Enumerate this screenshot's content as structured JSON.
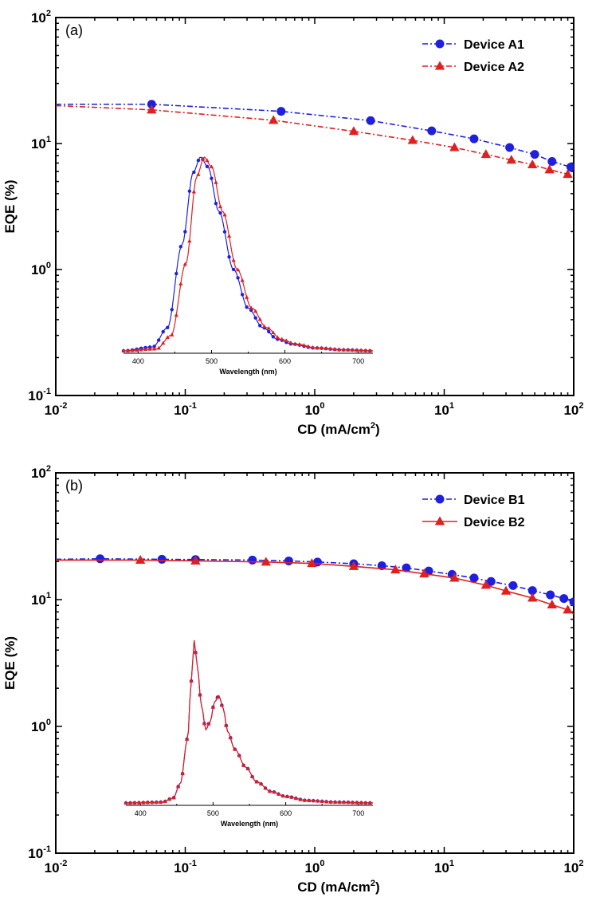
{
  "chart_data": [
    {
      "type": "line",
      "panel_label": "(a)",
      "xlabel": "CD (mA/cm2)",
      "ylabel": "EQE (%)",
      "x_scale": "log",
      "y_scale": "log",
      "xlim": [
        0.01,
        100
      ],
      "ylim": [
        0.1,
        100
      ],
      "x_tick_labels": [
        "10-2",
        "10-1",
        "100",
        "101",
        "102"
      ],
      "y_tick_labels": [
        "10-1",
        "100",
        "101",
        "102"
      ],
      "legend_position": "top-right",
      "series": [
        {
          "name": "Device A1",
          "color": "#1f1fe0",
          "marker": "circle",
          "line_style": "dash-dot",
          "x": [
            0.01,
            0.055,
            0.55,
            2.7,
            8,
            17,
            32,
            50,
            68,
            95
          ],
          "y": [
            20.5,
            20.5,
            18.0,
            15.2,
            12.6,
            10.9,
            9.3,
            8.2,
            7.2,
            6.5
          ],
          "marked_points": [
            0.055,
            0.55,
            2.7,
            8,
            17,
            32,
            50,
            68,
            95
          ]
        },
        {
          "name": "Device A2",
          "color": "#e01f1f",
          "marker": "triangle",
          "line_style": "dash-dot",
          "x": [
            0.01,
            0.055,
            0.48,
            2.0,
            5.7,
            12,
            21,
            33,
            48,
            65,
            90
          ],
          "y": [
            20.0,
            18.5,
            15.3,
            12.5,
            10.6,
            9.3,
            8.2,
            7.4,
            6.8,
            6.2,
            5.7
          ],
          "marked_points": [
            0.055,
            0.48,
            2.0,
            5.7,
            12,
            21,
            33,
            48,
            65,
            90
          ]
        }
      ],
      "inset": {
        "xlabel": "Wavelength (nm)",
        "xlim": [
          380,
          720
        ],
        "x_tick_labels": [
          "400",
          "500",
          "600",
          "700"
        ],
        "series": [
          {
            "name": "Device A1",
            "color": "#1f1fe0",
            "marker": "circle",
            "x": [
              380,
              420,
              440,
              460,
              475,
              485,
              495,
              510,
              530,
              550,
              570,
              590,
              610,
              640,
              680,
              720
            ],
            "y": [
              0.0,
              0.02,
              0.12,
              0.55,
              0.92,
              1.0,
              0.95,
              0.72,
              0.42,
              0.22,
              0.12,
              0.06,
              0.035,
              0.015,
              0.005,
              0.0
            ]
          },
          {
            "name": "Device A2",
            "color": "#e01f1f",
            "marker": "triangle",
            "x": [
              380,
              425,
              445,
              465,
              480,
              490,
              500,
              515,
              535,
              555,
              575,
              595,
              615,
              645,
              685,
              720
            ],
            "y": [
              0.0,
              0.01,
              0.08,
              0.45,
              0.9,
              1.0,
              0.95,
              0.72,
              0.42,
              0.22,
              0.12,
              0.06,
              0.035,
              0.015,
              0.005,
              0.0
            ]
          }
        ]
      }
    },
    {
      "type": "line",
      "panel_label": "(b)",
      "xlabel": "CD (mA/cm2)",
      "ylabel": "EQE (%)",
      "x_scale": "log",
      "y_scale": "log",
      "xlim": [
        0.01,
        100
      ],
      "ylim": [
        0.1,
        100
      ],
      "x_tick_labels": [
        "10-2",
        "10-1",
        "100",
        "101",
        "102"
      ],
      "y_tick_labels": [
        "10-1",
        "100",
        "101",
        "102"
      ],
      "legend_position": "top-right",
      "series": [
        {
          "name": "Device B1",
          "color": "#1f1fe0",
          "marker": "circle",
          "line_style": "dash-dot",
          "x": [
            0.01,
            0.022,
            0.066,
            0.12,
            0.33,
            0.63,
            1.05,
            2.0,
            3.3,
            5.1,
            7.6,
            11.5,
            17,
            23,
            34,
            48,
            66,
            84,
            100
          ],
          "y": [
            20.8,
            21.0,
            20.8,
            20.7,
            20.5,
            20.2,
            19.8,
            19.2,
            18.5,
            17.8,
            16.8,
            15.8,
            14.8,
            13.9,
            12.9,
            11.8,
            10.9,
            10.2,
            9.6
          ],
          "marked_points": [
            0.022,
            0.066,
            0.12,
            0.33,
            0.63,
            1.05,
            2.0,
            3.3,
            5.1,
            7.6,
            11.5,
            17,
            23,
            34,
            48,
            66,
            84,
            100
          ]
        },
        {
          "name": "Device B2",
          "color": "#e01f1f",
          "marker": "triangle",
          "line_style": "solid",
          "x": [
            0.01,
            0.045,
            0.12,
            0.42,
            0.95,
            2.0,
            4.2,
            7.0,
            12,
            21,
            30,
            48,
            68,
            90,
            100
          ],
          "y": [
            20.5,
            20.5,
            20.2,
            19.8,
            19.3,
            18.3,
            17.2,
            16.0,
            14.8,
            13.0,
            11.7,
            10.3,
            9.1,
            8.3,
            7.7
          ],
          "marked_points": [
            0.045,
            0.12,
            0.42,
            0.95,
            2.0,
            4.2,
            7.0,
            12,
            21,
            30,
            48,
            68,
            90
          ]
        }
      ],
      "inset": {
        "xlabel": "Wavelength (nm)",
        "xlim": [
          380,
          720
        ],
        "x_tick_labels": [
          "400",
          "500",
          "600",
          "700"
        ],
        "series": [
          {
            "name": "Device B1",
            "color": "#1f1fe0",
            "marker": "circle",
            "x": [
              380,
              430,
              445,
              455,
              465,
              470,
              474,
              478,
              484,
              490,
              496,
              502,
              508,
              514,
              520,
              530,
              545,
              560,
              580,
              600,
              630,
              670,
              720
            ],
            "y": [
              0.0,
              0.005,
              0.03,
              0.12,
              0.4,
              0.75,
              1.0,
              0.85,
              0.6,
              0.45,
              0.5,
              0.62,
              0.66,
              0.58,
              0.44,
              0.33,
              0.22,
              0.13,
              0.07,
              0.04,
              0.015,
              0.005,
              0.0
            ]
          },
          {
            "name": "Device B2",
            "color": "#e01f1f",
            "marker": "triangle",
            "x": [
              380,
              430,
              445,
              455,
              465,
              470,
              474,
              478,
              484,
              490,
              496,
              502,
              508,
              514,
              520,
              530,
              545,
              560,
              580,
              600,
              630,
              670,
              720
            ],
            "y": [
              0.0,
              0.005,
              0.03,
              0.12,
              0.4,
              0.75,
              1.0,
              0.85,
              0.6,
              0.45,
              0.5,
              0.62,
              0.66,
              0.58,
              0.44,
              0.33,
              0.22,
              0.13,
              0.07,
              0.04,
              0.015,
              0.005,
              0.0
            ]
          }
        ]
      }
    }
  ]
}
